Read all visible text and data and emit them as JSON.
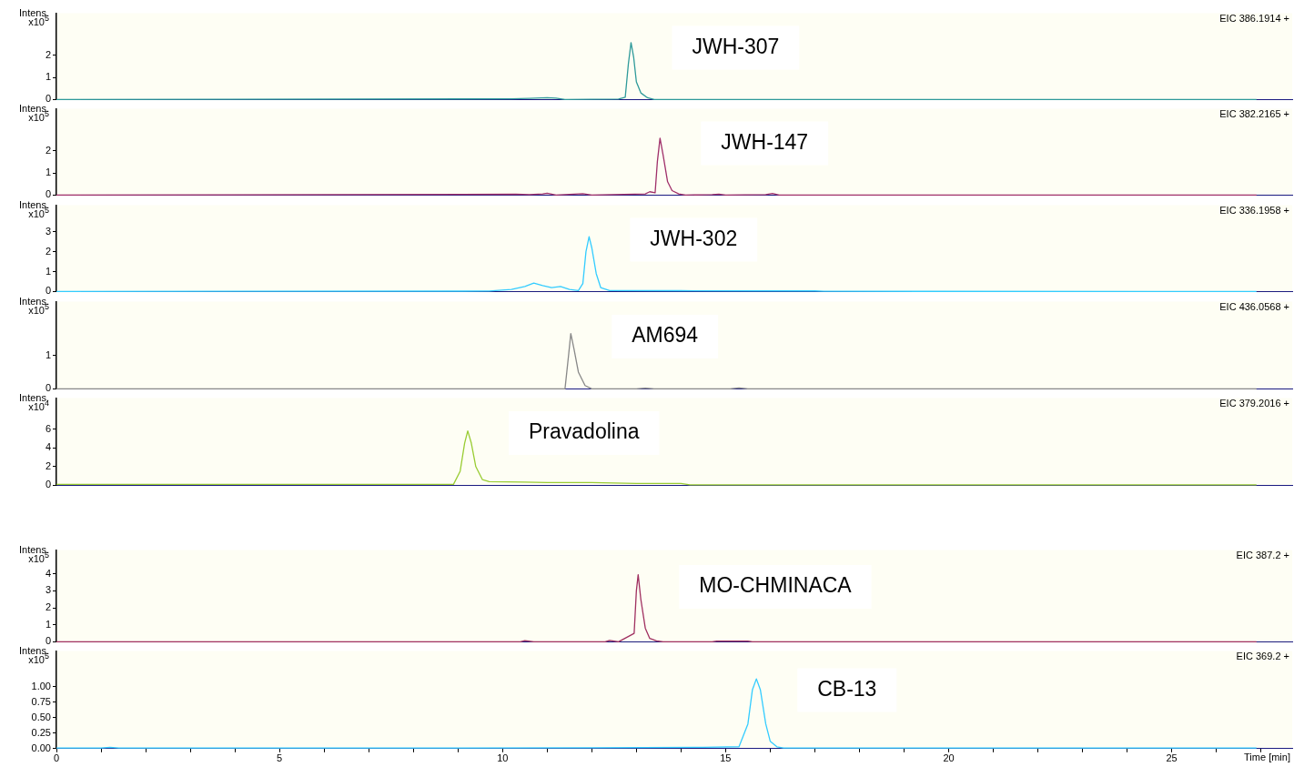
{
  "chart_data": [
    {
      "type": "line",
      "ylabel": "Intens. x10$^{5}$",
      "annotations": [
        "EIC 386.1914 +",
        "JWH-307"
      ],
      "color": "#2e9a9a",
      "tick_labels": "y",
      "xlim": [
        0,
        27.7
      ],
      "ylim": [
        0,
        3.9
      ],
      "yticks": [
        0,
        1,
        2
      ],
      "x": [
        0,
        10.2,
        10.6,
        11.0,
        11.2,
        11.4,
        12.6,
        12.75,
        12.82,
        12.88,
        12.94,
        13.0,
        13.1,
        13.25,
        13.4,
        26.9
      ],
      "values": [
        0,
        0.03,
        0.05,
        0.08,
        0.06,
        0,
        0.02,
        0.1,
        1.6,
        2.57,
        1.9,
        0.8,
        0.3,
        0.08,
        0,
        0
      ]
    },
    {
      "type": "line",
      "ylabel": "Intens. x10$^{5}$",
      "annotations": [
        "EIC 382.2165 +",
        "JWH-147"
      ],
      "color": "#a0306a",
      "tick_labels": "y",
      "xlim": [
        0,
        27.7
      ],
      "ylim": [
        0,
        3.9
      ],
      "yticks": [
        0,
        1,
        2
      ],
      "x": [
        0,
        10.3,
        10.6,
        10.9,
        11.0,
        11.2,
        11.7,
        11.8,
        12.0,
        13.2,
        13.3,
        13.42,
        13.47,
        13.53,
        13.6,
        13.7,
        13.8,
        13.95,
        14.1,
        14.7,
        14.85,
        15.0,
        15.9,
        16.05,
        16.2,
        26.9
      ],
      "values": [
        0,
        0.04,
        0.02,
        0.05,
        0.08,
        0,
        0.05,
        0.06,
        0,
        0.05,
        0.15,
        0.1,
        1.5,
        2.57,
        1.8,
        0.6,
        0.2,
        0.05,
        0,
        0.02,
        0.04,
        0,
        0.02,
        0.07,
        0,
        0
      ]
    },
    {
      "type": "line",
      "ylabel": "Intens. x10$^{5}$",
      "annotations": [
        "EIC 336.1958 +",
        "JWH-302"
      ],
      "color": "#33ccff",
      "tick_labels": "y",
      "xlim": [
        0,
        27.7
      ],
      "ylim": [
        0,
        4.33
      ],
      "yticks": [
        0,
        1,
        2,
        3
      ],
      "x": [
        0,
        9.7,
        10.2,
        10.5,
        10.7,
        10.9,
        11.1,
        11.3,
        11.5,
        11.7,
        11.8,
        11.87,
        11.94,
        12.0,
        12.1,
        12.2,
        12.4,
        14.0,
        17.0,
        17.2,
        26.9
      ],
      "values": [
        0,
        0.02,
        0.1,
        0.25,
        0.42,
        0.3,
        0.2,
        0.25,
        0.1,
        0.05,
        0.4,
        2.0,
        2.75,
        2.2,
        0.9,
        0.2,
        0.05,
        0.04,
        0.03,
        0.01,
        0
      ]
    },
    {
      "type": "line",
      "ylabel": "Intens. x10$^{5}$",
      "annotations": [
        "EIC 436.0568 +",
        "AM694"
      ],
      "color": "#888888",
      "tick_labels": "y",
      "xlim": [
        0,
        27.7
      ],
      "ylim": [
        0,
        2.6
      ],
      "yticks": [
        0,
        1
      ],
      "x": [
        0,
        11.4,
        11.48,
        11.53,
        11.6,
        11.7,
        11.85,
        12.0,
        13.0,
        13.2,
        13.4,
        15.1,
        15.3,
        15.5,
        26.9
      ],
      "values": [
        0,
        0,
        1.0,
        1.65,
        1.2,
        0.5,
        0.1,
        0,
        0,
        0.02,
        0,
        0,
        0.03,
        0,
        0
      ]
    },
    {
      "type": "line",
      "ylabel": "Intens. x10$^{4}$",
      "annotations": [
        "EIC 379.2016 +",
        "Pravadolina"
      ],
      "color": "#99cc33",
      "tick_labels": "y",
      "xlim": [
        0,
        27.7
      ],
      "ylim": [
        0,
        9.3
      ],
      "yticks": [
        0,
        2,
        4,
        6
      ],
      "x": [
        0,
        8.9,
        9.05,
        9.15,
        9.22,
        9.3,
        9.4,
        9.55,
        9.7,
        10.5,
        11.0,
        12.0,
        13.0,
        14.0,
        14.2,
        26.9
      ],
      "values": [
        0.1,
        0.1,
        1.5,
        4.5,
        5.8,
        4.5,
        2.0,
        0.6,
        0.4,
        0.35,
        0.3,
        0.3,
        0.2,
        0.2,
        0.05,
        0.05
      ]
    },
    {
      "type": "line",
      "ylabel": "Intens. x10$^{5}$",
      "annotations": [
        "EIC 387.2 +",
        "MO-CHMINACA"
      ],
      "color": "#a03060",
      "tick_labels": "y",
      "xlim": [
        0,
        27.7
      ],
      "ylim": [
        0,
        5.4
      ],
      "yticks": [
        0,
        1,
        2,
        3,
        4
      ],
      "x": [
        0,
        10.4,
        10.5,
        10.7,
        12.3,
        12.4,
        12.6,
        12.95,
        13.0,
        13.04,
        13.1,
        13.2,
        13.3,
        13.45,
        13.6,
        14.7,
        14.8,
        15.5,
        15.6,
        26.9
      ],
      "values": [
        0,
        0,
        0.07,
        0,
        0,
        0.08,
        0,
        0.5,
        3.0,
        3.95,
        2.5,
        0.8,
        0.2,
        0.05,
        0,
        0,
        0.04,
        0.04,
        0,
        0
      ]
    },
    {
      "type": "line",
      "ylabel": "Intens. x10$^{5}$",
      "xlabel": "Time [min]",
      "annotations": [
        "EIC 369.2 +",
        "CB-13"
      ],
      "color": "#33ccff",
      "xlim": [
        0,
        27.7
      ],
      "ylim": [
        0,
        1.58
      ],
      "yticks": [
        {
          "value": 0,
          "label": "0.00"
        },
        {
          "value": 0.25,
          "label": "0.25"
        },
        {
          "value": 0.5,
          "label": "0.50"
        },
        {
          "value": 0.75,
          "label": "0.75"
        },
        {
          "value": 1,
          "label": "1.00"
        }
      ],
      "xticks": [
        0,
        {
          "value": 1,
          "label": null
        },
        {
          "value": 2,
          "label": null
        },
        {
          "value": 3,
          "label": null
        },
        {
          "value": 4,
          "label": null
        },
        5,
        {
          "value": 6,
          "label": null
        },
        {
          "value": 7,
          "label": null
        },
        {
          "value": 8,
          "label": null
        },
        {
          "value": 9,
          "label": null
        },
        10,
        {
          "value": 11,
          "label": null
        },
        {
          "value": 12,
          "label": null
        },
        {
          "value": 13,
          "label": null
        },
        {
          "value": 14,
          "label": null
        },
        15,
        {
          "value": 16,
          "label": null
        },
        {
          "value": 17,
          "label": null
        },
        {
          "value": 18,
          "label": null
        },
        {
          "value": 19,
          "label": null
        },
        20,
        {
          "value": 21,
          "label": null
        },
        {
          "value": 22,
          "label": null
        },
        {
          "value": 23,
          "label": null
        },
        {
          "value": 24,
          "label": null
        },
        25,
        {
          "value": 26,
          "label": null
        },
        {
          "value": 27,
          "label": null
        }
      ],
      "x": [
        0,
        1.0,
        1.2,
        1.4,
        9.0,
        12.0,
        14.5,
        15.3,
        15.5,
        15.6,
        15.69,
        15.78,
        15.9,
        16.0,
        16.15,
        16.3,
        17.2,
        26.9
      ],
      "values": [
        0.01,
        0.01,
        0.02,
        0.01,
        0.01,
        0.015,
        0.02,
        0.03,
        0.4,
        0.95,
        1.13,
        0.95,
        0.4,
        0.12,
        0.03,
        0.01,
        0.01,
        0.01
      ]
    }
  ]
}
